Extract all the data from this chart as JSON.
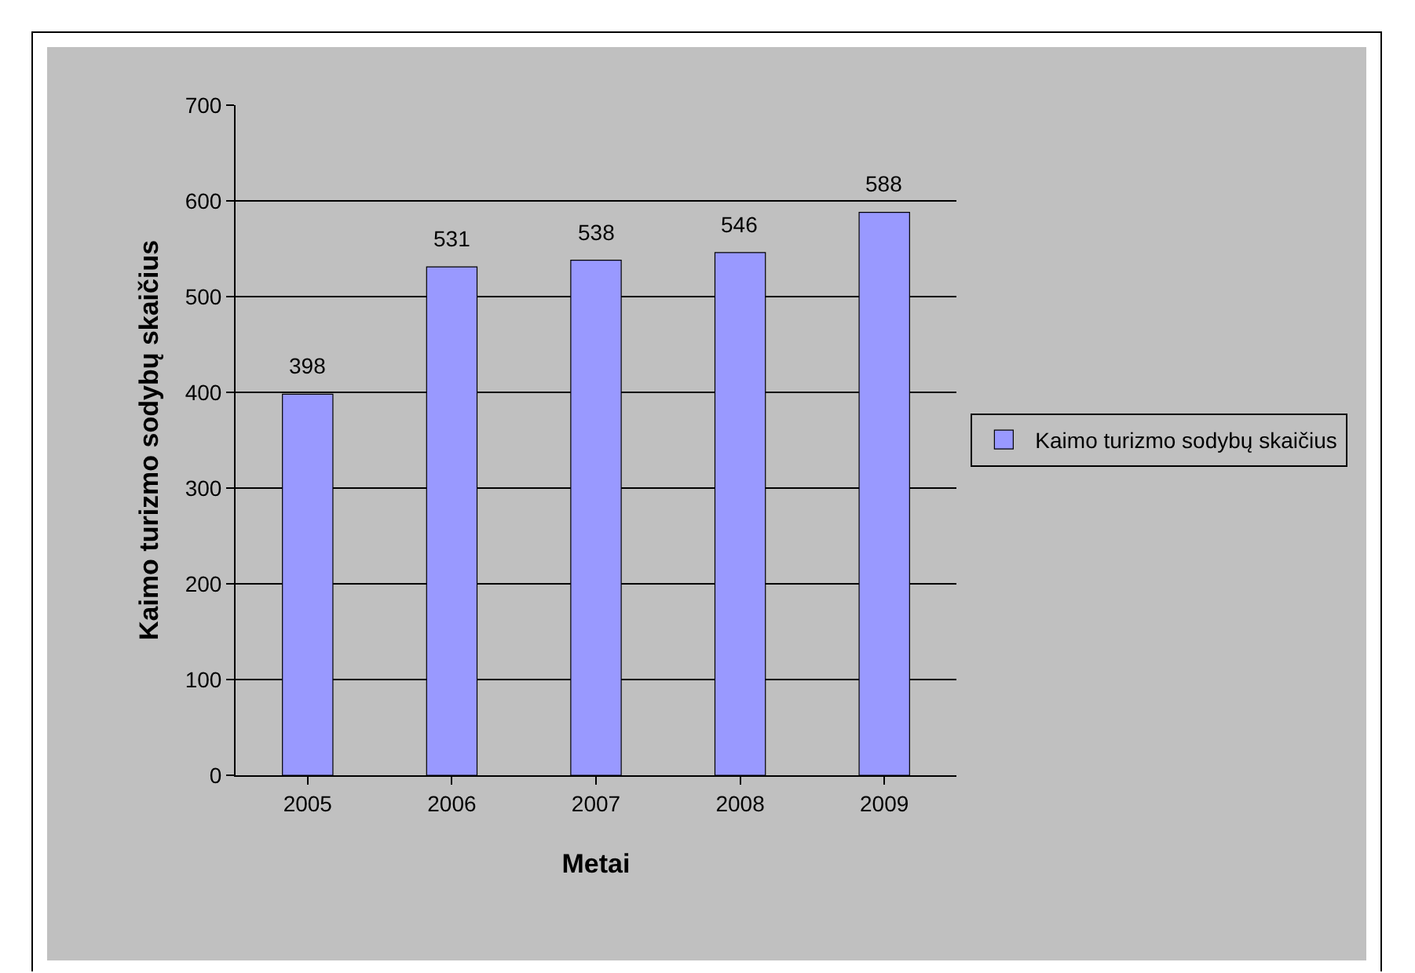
{
  "chart_data": {
    "type": "bar",
    "xlabel": "Metai",
    "ylabel": "Kaimo turizmo sodybų skaičius",
    "categories": [
      "2005",
      "2006",
      "2007",
      "2008",
      "2009"
    ],
    "series": [
      {
        "name": "Kaimo turizmo sodybų skaičius",
        "color": "#9999ff",
        "values": [
          398,
          531,
          538,
          546,
          588
        ]
      }
    ],
    "ylim": [
      0,
      700
    ],
    "yticks": [
      0,
      100,
      200,
      300,
      400,
      500,
      600,
      700
    ],
    "grid": "y",
    "legend": "right",
    "data_labels": true
  }
}
